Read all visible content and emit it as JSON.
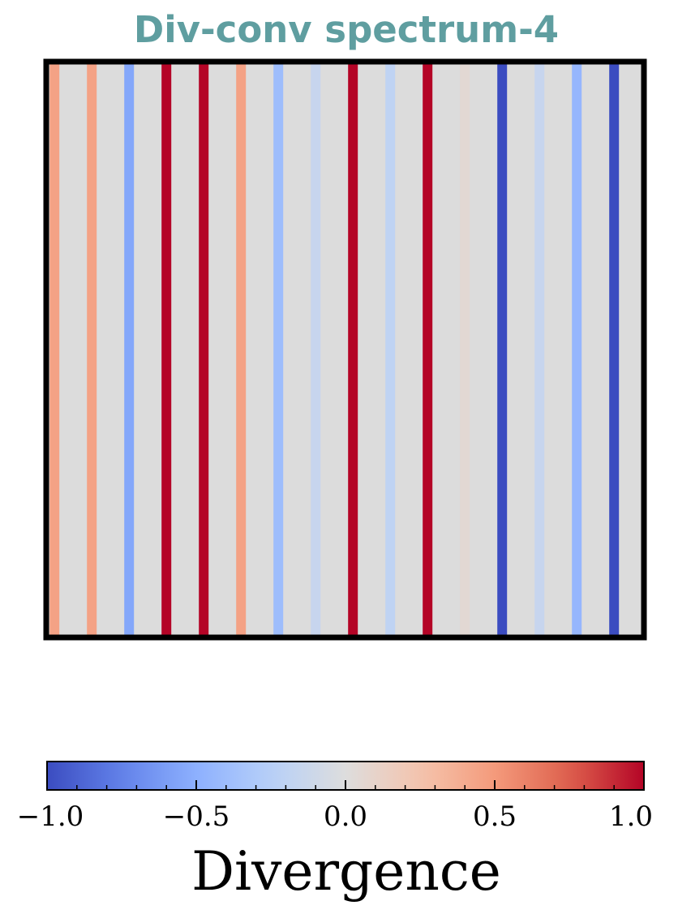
{
  "chart_data": {
    "type": "heatmap",
    "title": "Div-conv spectrum-4",
    "title_color": "#5f9ea0",
    "colormap": "coolwarm",
    "background_color": "#dcdcdc",
    "value_range": [
      -1.0,
      1.0
    ],
    "lines": [
      {
        "x": 0.2,
        "value": 0.45
      },
      {
        "x": 1.2,
        "value": 0.45
      },
      {
        "x": 2.2,
        "value": -0.55
      },
      {
        "x": 3.2,
        "value": 1.0
      },
      {
        "x": 4.2,
        "value": 1.0
      },
      {
        "x": 5.2,
        "value": 0.45
      },
      {
        "x": 6.2,
        "value": -0.4
      },
      {
        "x": 7.2,
        "value": -0.15
      },
      {
        "x": 8.2,
        "value": 1.0
      },
      {
        "x": 9.2,
        "value": -0.2
      },
      {
        "x": 10.2,
        "value": 1.0
      },
      {
        "x": 11.2,
        "value": 0.05
      },
      {
        "x": 12.2,
        "value": -1.0
      },
      {
        "x": 13.2,
        "value": -0.15
      },
      {
        "x": 14.2,
        "value": -0.45
      },
      {
        "x": 15.2,
        "value": -1.0
      }
    ],
    "xlim": [
      0,
      16
    ],
    "grid": false,
    "colorbar": {
      "label": "Divergence",
      "ticks": [
        -1.0,
        -0.5,
        0.0,
        0.5,
        1.0
      ],
      "tick_labels": [
        "−1.0",
        "−0.5",
        "0.0",
        "0.5",
        "1.0"
      ],
      "orientation": "horizontal",
      "placement": "bottom"
    }
  }
}
